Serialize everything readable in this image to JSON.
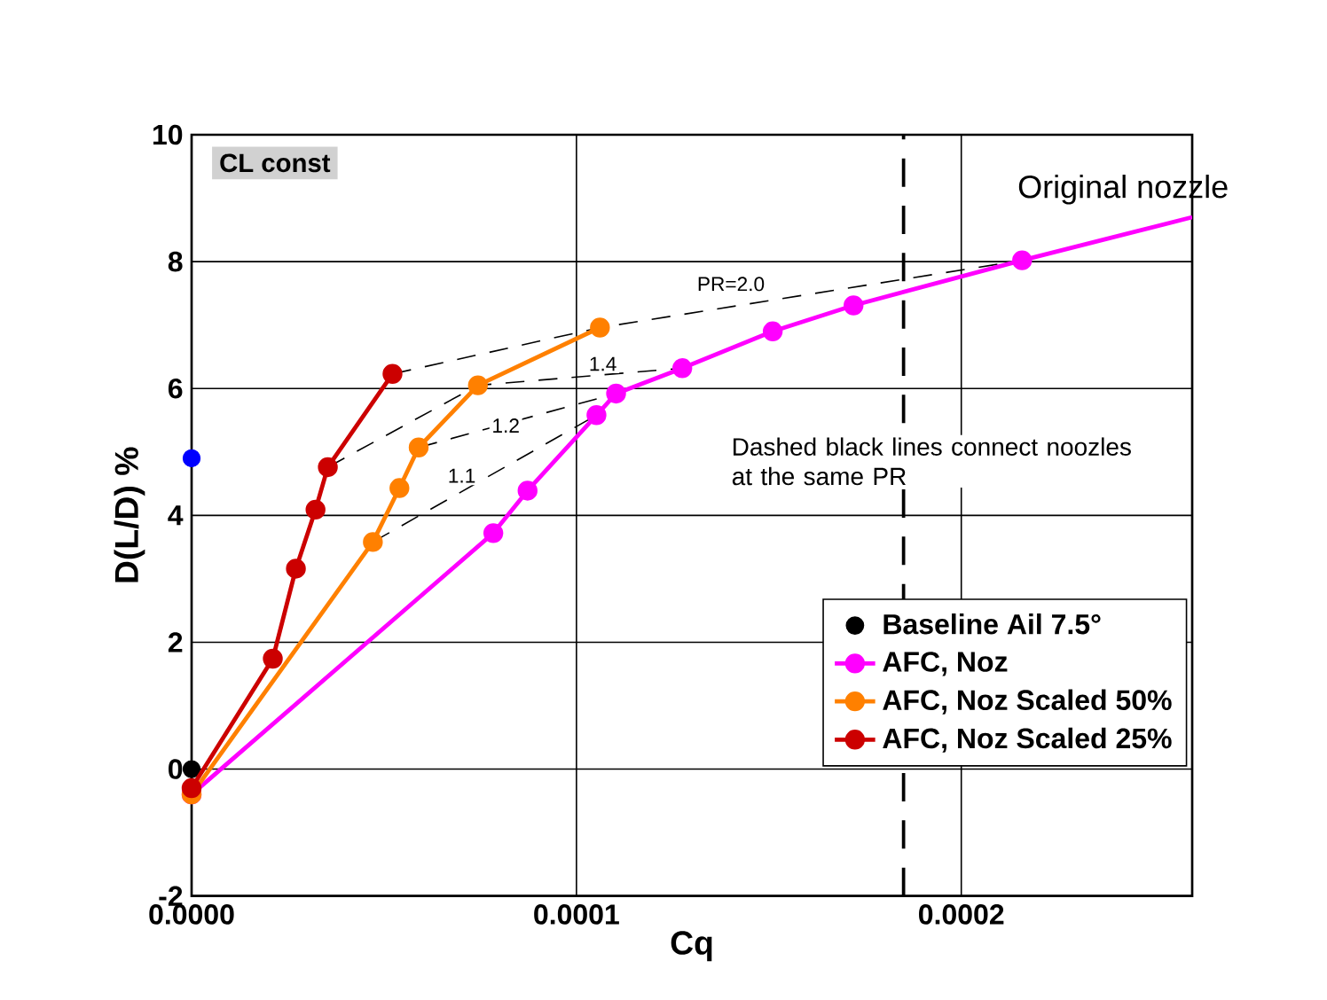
{
  "chart_data": {
    "type": "line",
    "xlabel": "Cq",
    "ylabel": "D(L/D) %",
    "xlim": [
      0,
      0.00026
    ],
    "ylim": [
      -2,
      10
    ],
    "xticks": [
      {
        "value": 0,
        "label": "0.0000"
      },
      {
        "value": 0.0001,
        "label": "0.0001"
      },
      {
        "value": 0.0002,
        "label": "0.0002"
      }
    ],
    "yticks": [
      -2,
      0,
      2,
      4,
      6,
      8,
      10
    ],
    "grid": true,
    "legend": "bottom right",
    "series": [
      {
        "color": "#000000",
        "marker": "none",
        "line_style": "dashed",
        "x": [
          5.22e-05,
          0.0001061,
          0.0002158
        ],
        "values": [
          6.23,
          6.96,
          8.02
        ]
      },
      {
        "color": "#000000",
        "marker": "none",
        "line_style": "dashed",
        "x": [
          3.54e-05,
          7.44e-05,
          0.0001275
        ],
        "values": [
          4.76,
          6.05,
          6.32
        ]
      },
      {
        "color": "#000000",
        "marker": "none",
        "line_style": "dashed",
        "x": [
          5.9e-05,
          0.0001103
        ],
        "values": [
          5.07,
          5.92
        ]
      },
      {
        "color": "#000000",
        "marker": "none",
        "line_style": "dashed",
        "x": [
          4.71e-05,
          0.0001052
        ],
        "values": [
          3.58,
          5.58
        ]
      },
      {
        "color": "#ff00ff",
        "line_style": "solid",
        "x": [
          0.0002158,
          0.00026
        ],
        "values": [
          8.02,
          8.7
        ]
      },
      {
        "type": "scatter",
        "color": "#0000ff",
        "marker": "circle",
        "x": [
          0
        ],
        "values": [
          4.9
        ]
      },
      {
        "name": "Baseline Ail 7.5°",
        "type": "scatter",
        "color": "#000000",
        "marker": "circle",
        "x": [
          0
        ],
        "values": [
          0
        ]
      },
      {
        "name": "AFC, Noz",
        "color": "#ff00ff",
        "marker": "circle",
        "line_style": "solid",
        "x": [
          0,
          7.84e-05,
          8.73e-05,
          0.0001052,
          0.0001103,
          0.0001275,
          0.000151,
          0.000172,
          0.0002158
        ],
        "values": [
          -0.4,
          3.72,
          4.39,
          5.58,
          5.92,
          6.32,
          6.9,
          7.31,
          8.02
        ]
      },
      {
        "name": "AFC, Noz Scaled 50%",
        "color": "#ff8000",
        "marker": "circle",
        "line_style": "solid",
        "x": [
          0,
          4.71e-05,
          5.4e-05,
          5.9e-05,
          7.44e-05,
          0.0001061
        ],
        "values": [
          -0.4,
          3.58,
          4.43,
          5.07,
          6.05,
          6.96
        ]
      },
      {
        "name": "AFC, Noz Scaled 25%",
        "color": "#cc0000",
        "marker": "circle",
        "line_style": "solid",
        "x": [
          0,
          2.11e-05,
          2.71e-05,
          3.22e-05,
          3.54e-05,
          5.22e-05
        ],
        "values": [
          -0.3,
          1.74,
          3.16,
          4.09,
          4.76,
          6.23
        ]
      }
    ],
    "ref_lines": [
      {
        "axis": "x",
        "value": 0.000185,
        "color": "#000000",
        "line_style": "dashed"
      }
    ],
    "annotations": [
      "CL const",
      "Dashed black lines connect noozles at the same PR",
      "Original nozzle",
      "PR=2.0",
      "1.4",
      "1.2",
      "1.1"
    ]
  }
}
